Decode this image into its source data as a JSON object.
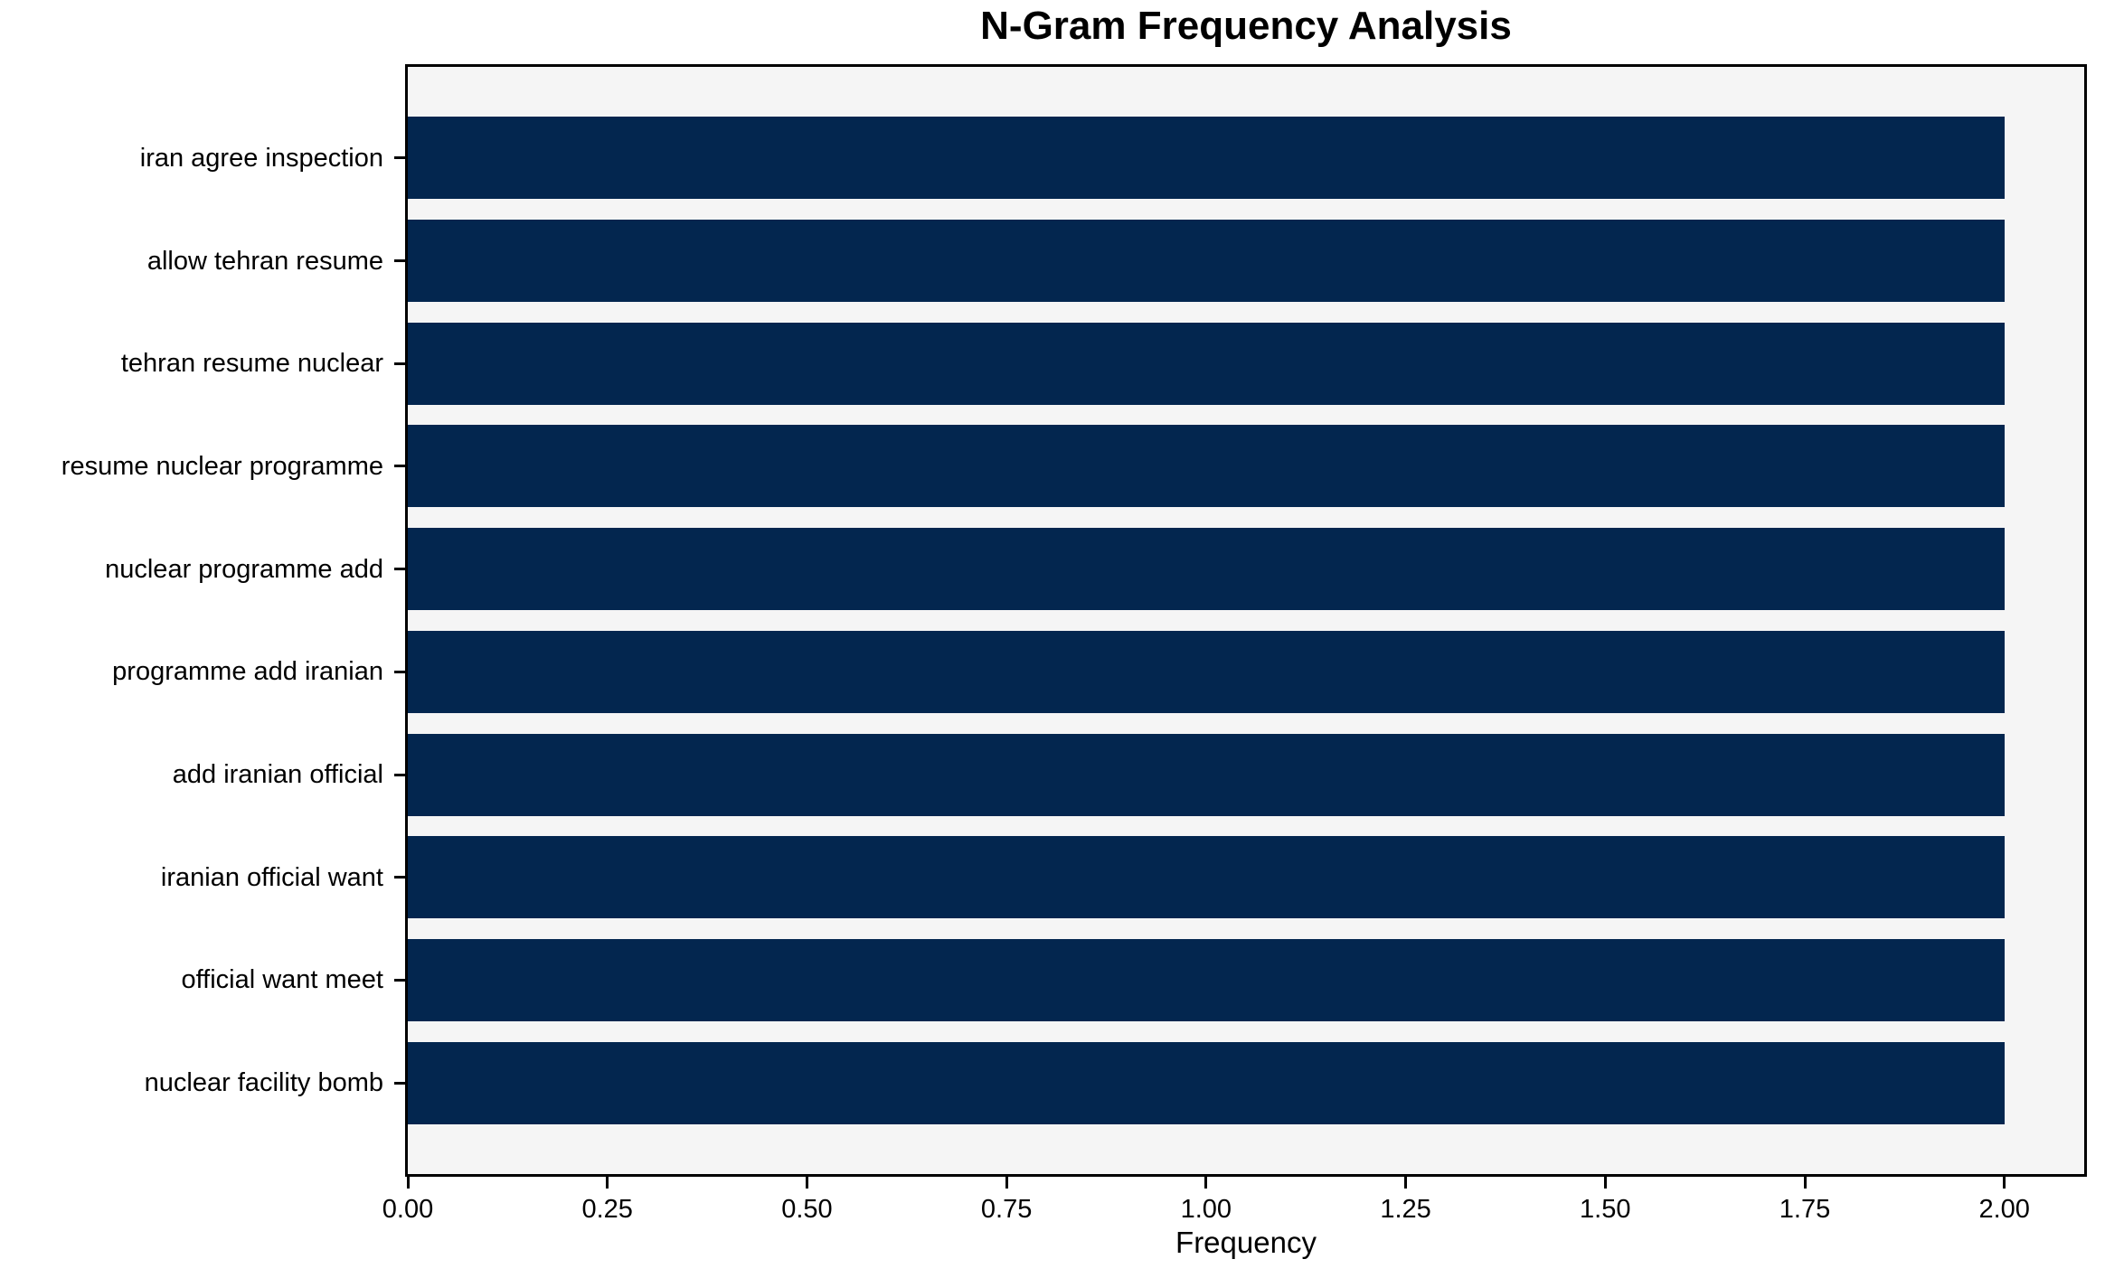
{
  "chart_data": {
    "type": "bar",
    "orientation": "horizontal",
    "title": "N-Gram Frequency Analysis",
    "xlabel": "Frequency",
    "ylabel": "",
    "categories": [
      "iran agree inspection",
      "allow tehran resume",
      "tehran resume nuclear",
      "resume nuclear programme",
      "nuclear programme add",
      "programme add iranian",
      "add iranian official",
      "iranian official want",
      "official want meet",
      "nuclear facility bomb"
    ],
    "values": [
      2,
      2,
      2,
      2,
      2,
      2,
      2,
      2,
      2,
      2
    ],
    "xlim": [
      0,
      2.1
    ],
    "xticks": [
      {
        "value": 0.0,
        "label": "0.00"
      },
      {
        "value": 0.25,
        "label": "0.25"
      },
      {
        "value": 0.5,
        "label": "0.50"
      },
      {
        "value": 0.75,
        "label": "0.75"
      },
      {
        "value": 1.0,
        "label": "1.00"
      },
      {
        "value": 1.25,
        "label": "1.25"
      },
      {
        "value": 1.5,
        "label": "1.50"
      },
      {
        "value": 1.75,
        "label": "1.75"
      },
      {
        "value": 2.0,
        "label": "2.00"
      }
    ],
    "bar_height_frac": 0.8,
    "grid": false,
    "legend": null,
    "colors": {
      "bar": "#03264f",
      "plot_background": "#f5f5f5",
      "figure_background": "#ffffff",
      "spine": "#000000",
      "text": "#000000"
    }
  }
}
